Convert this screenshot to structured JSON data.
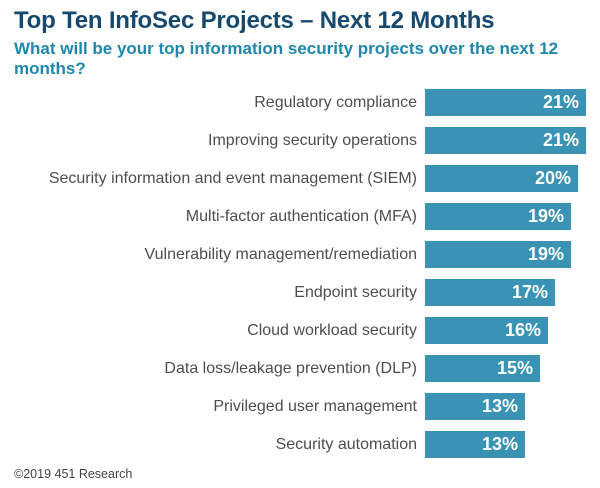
{
  "header": {
    "title": "Top Ten InfoSec Projects – Next 12 Months",
    "subtitle": "What will be your top information security projects over the next 12 months?"
  },
  "footer": {
    "copyright": "©2019 451 Research"
  },
  "colors": {
    "title": "#17496e",
    "subtitle": "#1f87ac",
    "bar": "#3a93b5",
    "bar_value_text": "#ffffff",
    "category_label": "#4e4e50",
    "footer_text": "#434345",
    "background": "#ffffff"
  },
  "chart_data": {
    "type": "bar",
    "orientation": "horizontal",
    "title": "Top Ten InfoSec Projects – Next 12 Months",
    "subtitle": "What will be your top information security projects over the next 12 months?",
    "categories": [
      "Regulatory compliance",
      "Improving security operations",
      "Security information and event management (SIEM)",
      "Multi-factor authentication (MFA)",
      "Vulnerability management/remediation",
      "Endpoint security",
      "Cloud workload security",
      "Data loss/leakage prevention (DLP)",
      "Privileged user management",
      "Security automation"
    ],
    "values": [
      21,
      21,
      20,
      19,
      19,
      17,
      16,
      15,
      13,
      13
    ],
    "value_suffix": "%",
    "value_labels": [
      "21%",
      "21%",
      "20%",
      "19%",
      "19%",
      "17%",
      "16%",
      "15%",
      "13%",
      "13%"
    ],
    "xlim": [
      0,
      21
    ],
    "grid": false,
    "legend": false,
    "value_labels_position": "inside-end",
    "category_labels_position": "left"
  }
}
